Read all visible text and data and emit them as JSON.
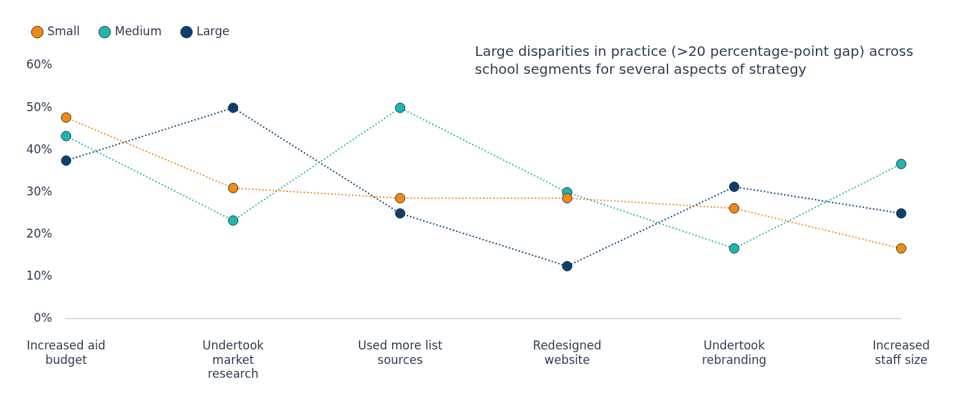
{
  "chart_data": {
    "type": "line",
    "categories": [
      "Increased aid budget",
      "Undertook market research",
      "Used more list sources",
      "Redesigned website",
      "Undertook rebranding",
      "Increased staff size"
    ],
    "series": [
      {
        "name": "Small",
        "color": "#ee8b10",
        "values": [
          47.7,
          31,
          28.6,
          28.6,
          26.2,
          16.7
        ]
      },
      {
        "name": "Medium",
        "color": "#1fb5b0",
        "values": [
          43.3,
          23.3,
          50,
          30,
          16.7,
          36.7
        ]
      },
      {
        "name": "Large",
        "color": "#0d3f6e",
        "values": [
          37.5,
          50,
          25,
          12.5,
          31.3,
          25
        ]
      }
    ],
    "ylim": [
      0,
      60
    ],
    "yticks": [
      {
        "value": 0,
        "label": "0%"
      },
      {
        "value": 10,
        "label": "10%"
      },
      {
        "value": 20,
        "label": "20%"
      },
      {
        "value": 30,
        "label": "30%"
      },
      {
        "value": 40,
        "label": "40%"
      },
      {
        "value": 50,
        "label": "50%"
      },
      {
        "value": 60,
        "label": "60%"
      }
    ],
    "annotations": [
      "Large disparities in practice (>20 percentage-point gap) across school segments for several aspects of strategy"
    ],
    "grid": false,
    "legend": "top left",
    "marker": "circle",
    "line_style": "dotted"
  }
}
